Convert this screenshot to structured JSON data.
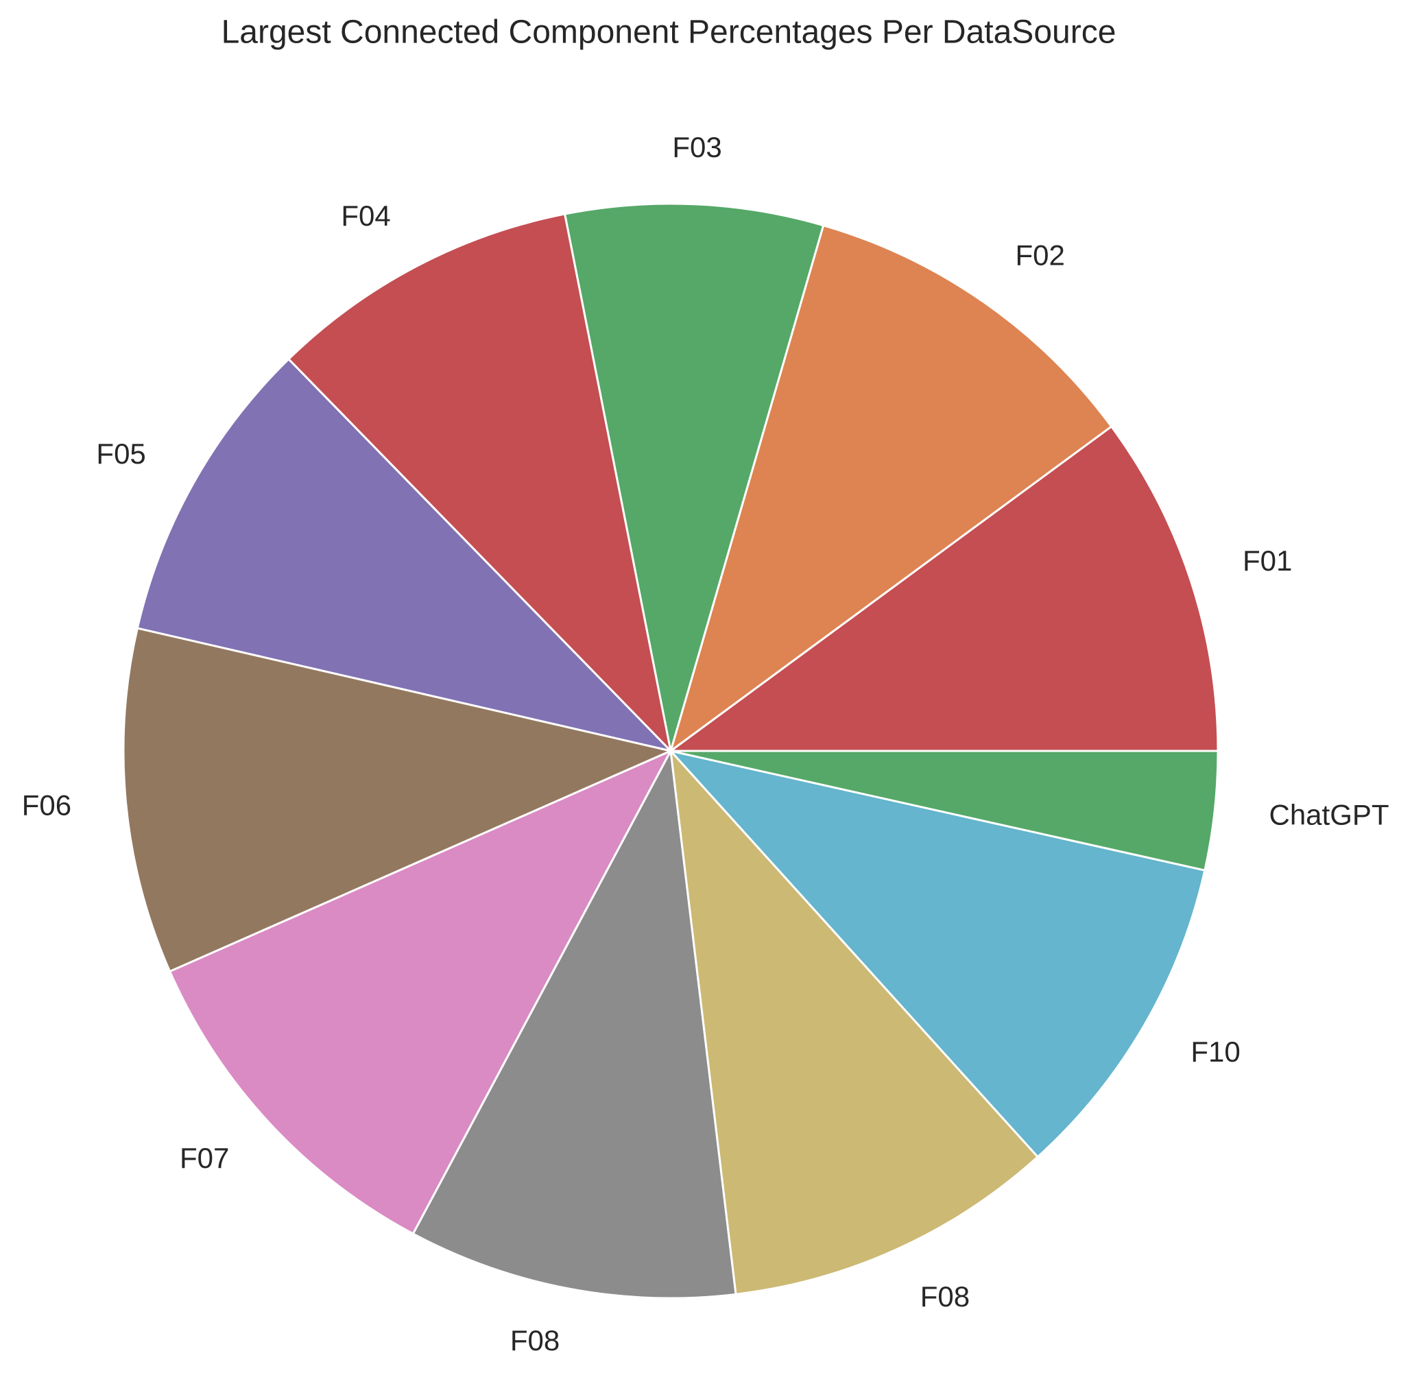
{
  "chart_data": {
    "type": "pie",
    "title": "Largest Connected Component Percentages Per DataSource",
    "categories": [
      "F01",
      "F02",
      "F03",
      "F04",
      "F05",
      "F06",
      "F07",
      "F08",
      "F08",
      "F10",
      "ChatGPT"
    ],
    "values": [
      10.1,
      10.4,
      7.6,
      9.2,
      9.1,
      10.2,
      10.6,
      9.7,
      9.8,
      9.8,
      3.5
    ],
    "colors": [
      "#c44e52",
      "#dd8452",
      "#55a868",
      "#c44e52",
      "#8172b3",
      "#937860",
      "#da8bc3",
      "#8c8c8c",
      "#ccb974",
      "#64b5cd",
      "#55a868"
    ]
  }
}
